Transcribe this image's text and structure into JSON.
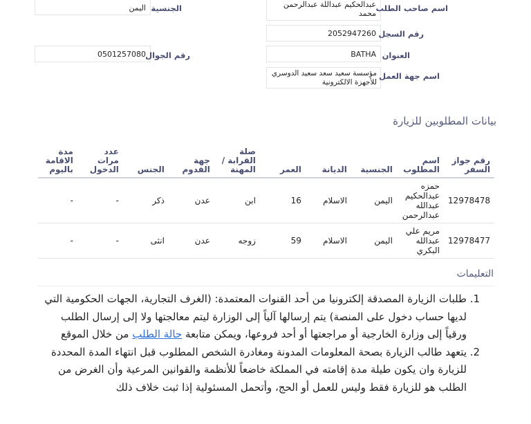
{
  "fields": {
    "applicant_name": {
      "label": "اسم صاحب الطلب",
      "value": "عبدالحكيم عبداللة عبدالرحمن محمد"
    },
    "record_number": {
      "label": "رقم السجل",
      "value": "2052947260"
    },
    "address": {
      "label": "العنوان",
      "value": "BATHA"
    },
    "employer": {
      "label": "اسم جهة العمل",
      "value": "مؤسسة سعيد سعد سعيد الدوسري للأجهزة الالكترونية"
    },
    "nationality": {
      "label": "الجنسية",
      "value": "اليمن"
    },
    "mobile": {
      "label": "رقم الجوال",
      "value": "0501257080"
    }
  },
  "visitors": {
    "title": "بيانات المطلوبين للزيارة",
    "headers": [
      "رقم جواز السفر",
      "اسم المطلوب",
      "الجنسية",
      "الديانة",
      "العمر",
      "صلة القرابة / المهنة",
      "جهة القدوم",
      "الجنس",
      "عدد مرات الدخول",
      "مدة الاقامة باليوم"
    ],
    "rows": [
      [
        "12978478",
        "حمزه عبدالحكيم عبدالله عبدالرحمن",
        "اليمن",
        "الاسلام",
        "16",
        "ابن",
        "عدن",
        "ذكر",
        "-",
        "-"
      ],
      [
        "12978477",
        "مريم علي عبدالله البكري",
        "اليمن",
        "الاسلام",
        "59",
        "زوجه",
        "عدن",
        "انثى",
        "-",
        "-"
      ]
    ]
  },
  "instructions": {
    "title": "التعليمات",
    "item1_text": "طلبات الزيارة المصدقة إلكترونيا من أحد القنوات المعتمدة: (الغرف التجارية، الجهات الحكومية التي لديها حساب دخول على المنصة) يتم إرسالها آلياً إلى الوزارة ليتم معالجتها ولا إلى إرسال الطلب ورقياً إلى وزارة الخارجية أو مراجعتها أو أحد فروعها، ويمكن متابعة",
    "item1_link": "حالة الطلب",
    "item1_suffix": " من خلال الموقع",
    "item2_text": "يتعهد طالب الزيارة بصحة المعلومات المدونة ومغادرة الشخص المطلوب قبل انتهاء المدة المحددة للزيارة وان يكون طيلة مدة إقامته في المملكة خاضعاً للأنظمة والقوانين المرعية وأن الغرض من الطلب هو للزيارة فقط وليس للعمل أو الحج، وأتحمل المسئولية إذا ثبت خلاف ذلك"
  }
}
